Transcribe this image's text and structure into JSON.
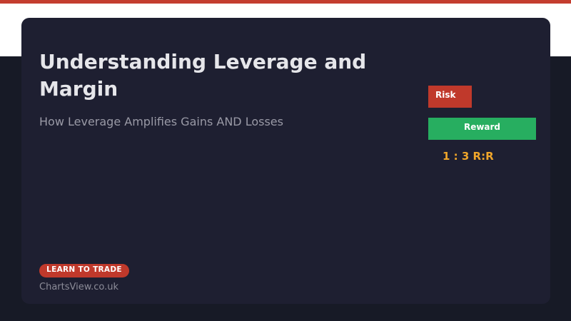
{
  "header": {
    "accent_color": "#c43d2f",
    "band_color": "#ffffff"
  },
  "card": {
    "title": "Understanding Leverage and Margin",
    "subtitle": "How Leverage Amplifies Gains AND Losses"
  },
  "risk_reward": {
    "risk_label": "Risk",
    "reward_label": "Reward",
    "ratio_text": "1 : 3 R:R",
    "risk_color": "#c0392b",
    "reward_color": "#27ae60",
    "ratio_color": "#f0a62a"
  },
  "footer": {
    "cta_label": "LEARN TO TRADE",
    "brand": "ChartsView.co.uk"
  }
}
